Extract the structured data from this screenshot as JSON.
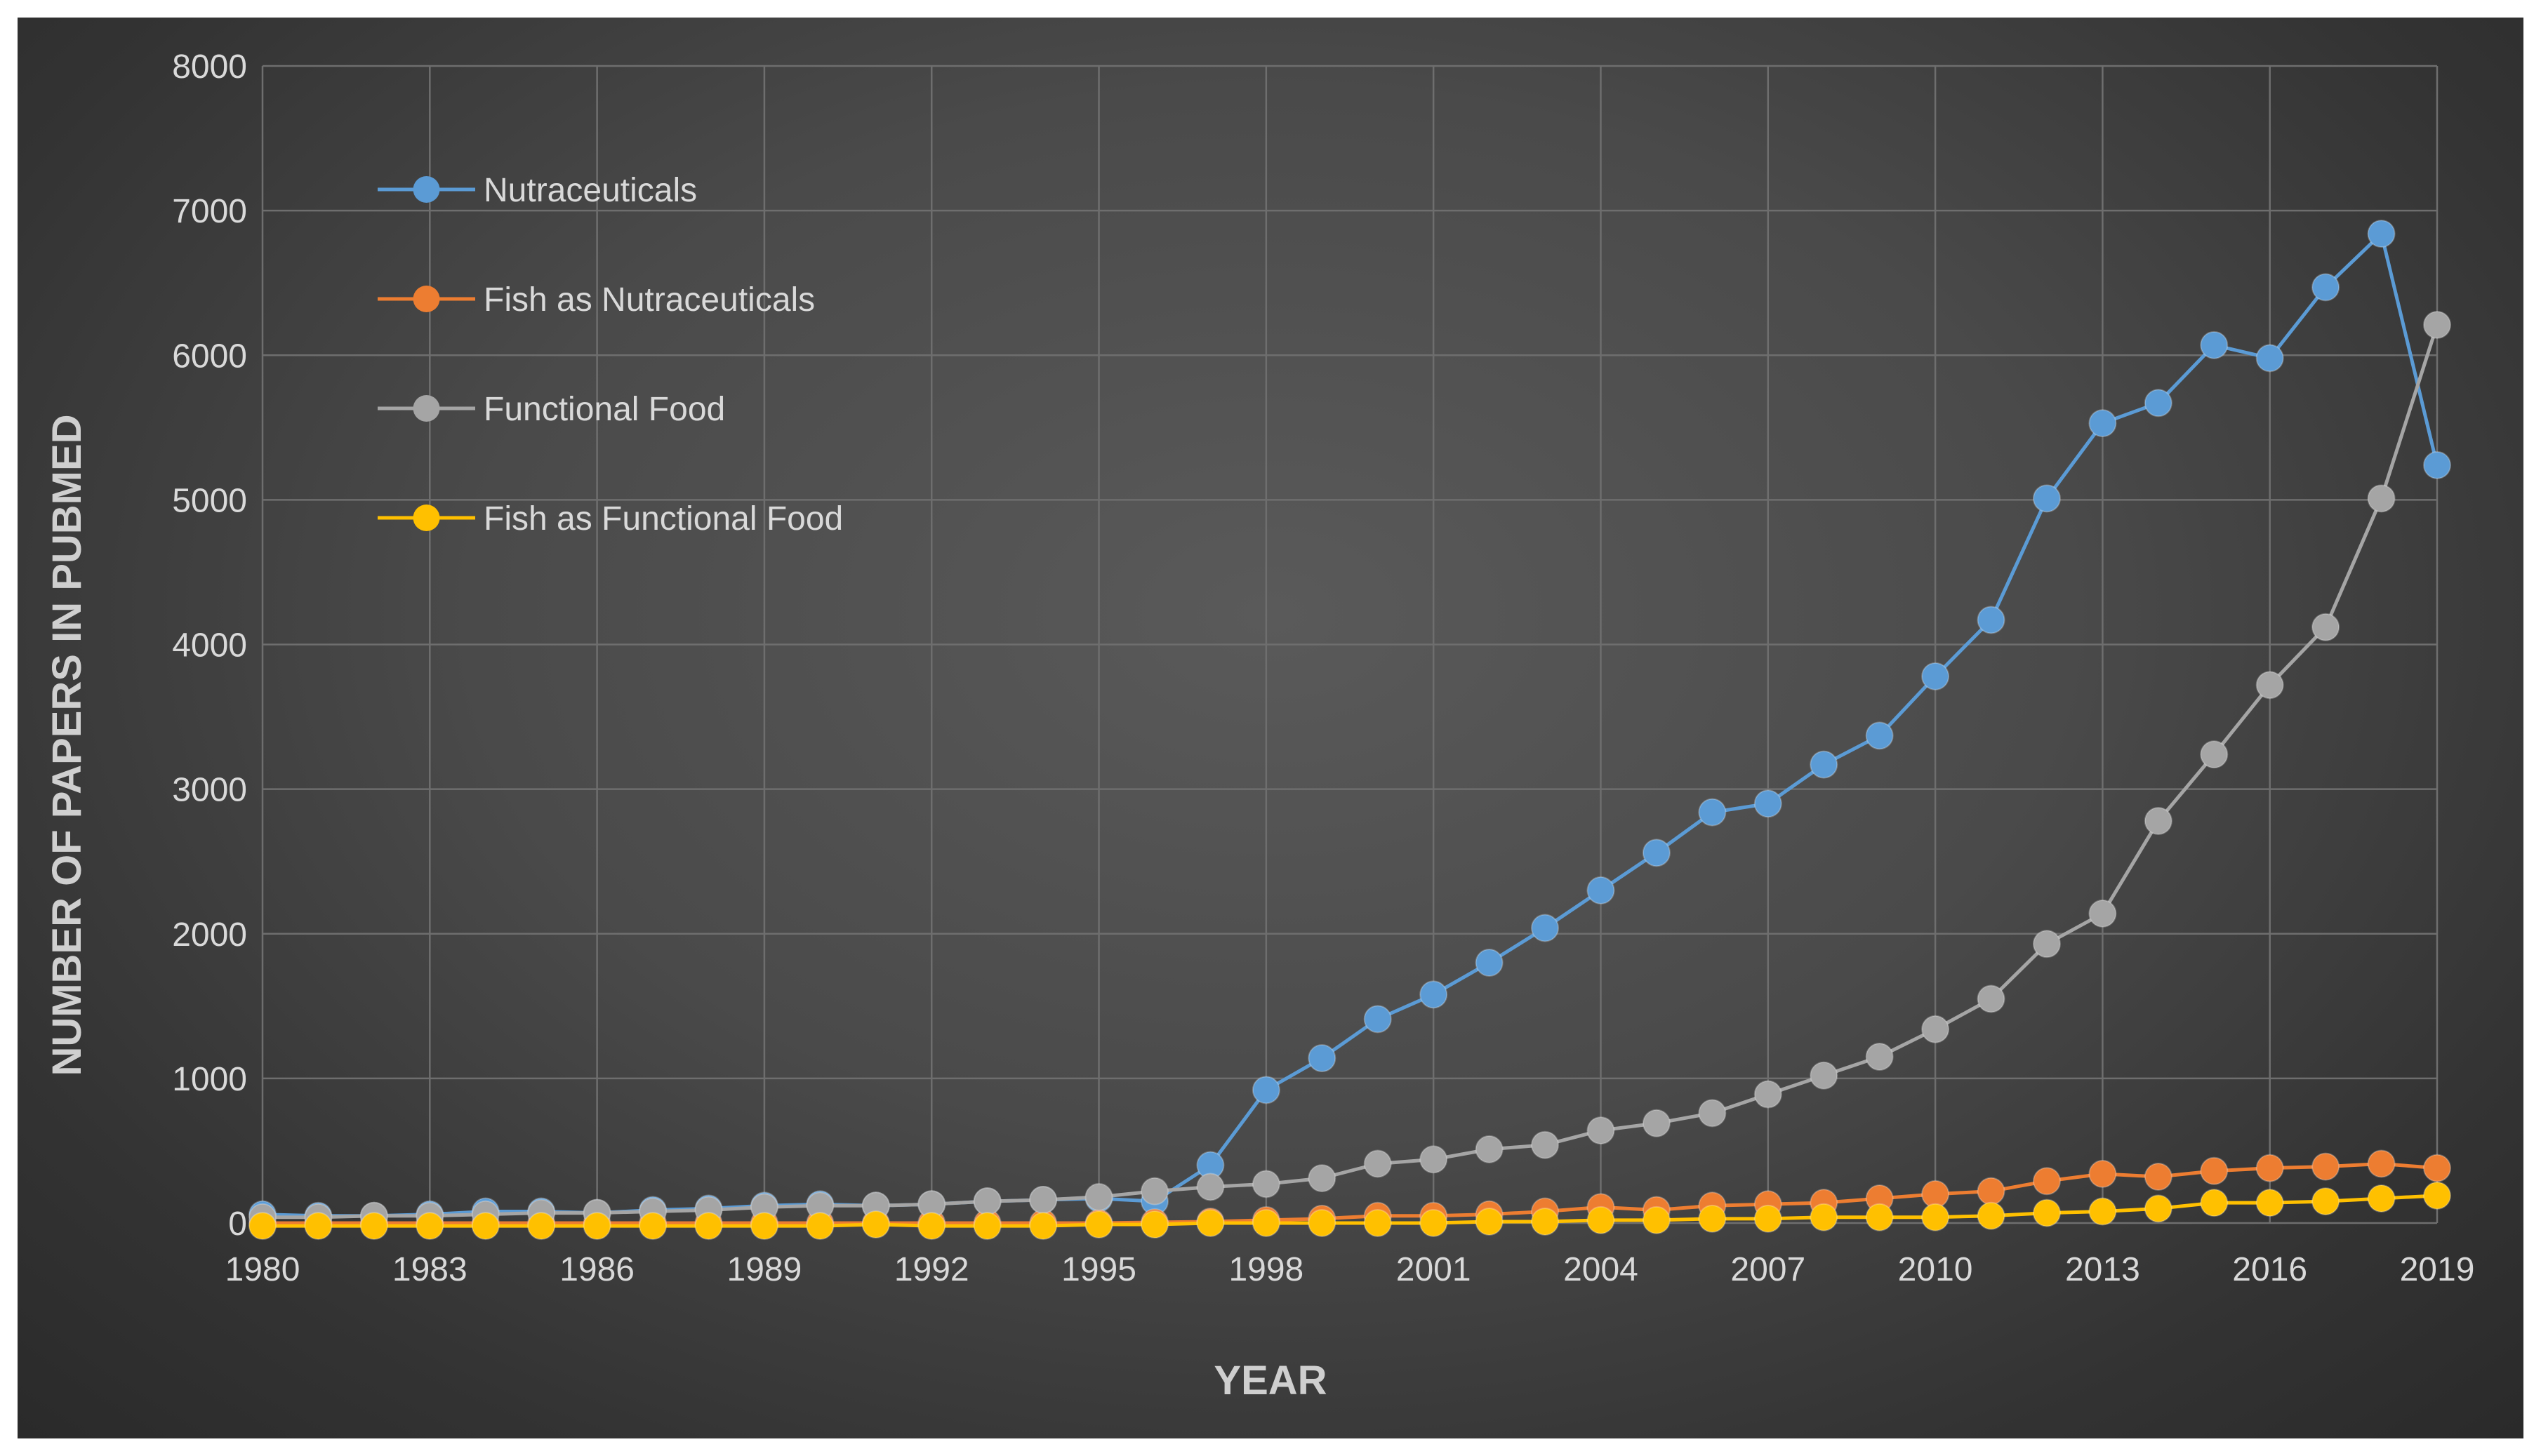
{
  "chart_data": {
    "type": "line",
    "title": "",
    "xlabel": "YEAR",
    "ylabel": "NUMBER OF PAPERS IN PUBMED",
    "x": [
      1980,
      1981,
      1982,
      1983,
      1984,
      1985,
      1986,
      1987,
      1988,
      1989,
      1990,
      1991,
      1992,
      1993,
      1994,
      1995,
      1996,
      1997,
      1998,
      1999,
      2000,
      2001,
      2002,
      2003,
      2004,
      2005,
      2006,
      2007,
      2008,
      2009,
      2010,
      2011,
      2012,
      2013,
      2014,
      2015,
      2016,
      2017,
      2018,
      2019
    ],
    "xticks": [
      "1980",
      "1983",
      "1986",
      "1989",
      "1992",
      "1995",
      "1998",
      "2001",
      "2004",
      "2007",
      "2010",
      "2013",
      "2016",
      "2019"
    ],
    "ylim": [
      0,
      8000
    ],
    "yticks": [
      "0",
      "1000",
      "2000",
      "3000",
      "4000",
      "5000",
      "6000",
      "7000",
      "8000"
    ],
    "grid": true,
    "legend_position": "top-left",
    "series": [
      {
        "name": "Nutraceuticals",
        "color": "#5b9bd5",
        "values": [
          60,
          50,
          50,
          60,
          80,
          80,
          70,
          90,
          100,
          120,
          130,
          120,
          130,
          150,
          160,
          170,
          150,
          400,
          920,
          1140,
          1410,
          1580,
          1800,
          2040,
          2300,
          2560,
          2840,
          2900,
          3170,
          3370,
          3780,
          4170,
          5010,
          5530,
          5670,
          6070,
          5980,
          6470,
          6840,
          5240
        ]
      },
      {
        "name": "Fish as Nutraceuticals",
        "color": "#ed7d31",
        "values": [
          0,
          0,
          0,
          0,
          0,
          0,
          0,
          0,
          0,
          0,
          0,
          0,
          0,
          0,
          0,
          0,
          5,
          10,
          20,
          30,
          50,
          50,
          60,
          80,
          110,
          90,
          120,
          130,
          140,
          170,
          200,
          220,
          290,
          340,
          320,
          360,
          380,
          390,
          410,
          380
        ]
      },
      {
        "name": "Functional Food",
        "color": "#a5a5a5",
        "values": [
          40,
          40,
          50,
          50,
          60,
          70,
          70,
          80,
          90,
          110,
          120,
          120,
          130,
          150,
          160,
          180,
          220,
          250,
          270,
          310,
          410,
          440,
          510,
          540,
          640,
          690,
          760,
          890,
          1020,
          1150,
          1340,
          1550,
          1930,
          2140,
          2780,
          3240,
          3720,
          4120,
          5010,
          6210
        ]
      },
      {
        "name": "Fish as Functional Food",
        "color": "#ffc000",
        "values": [
          -20,
          -20,
          -20,
          -20,
          -20,
          -20,
          -20,
          -20,
          -20,
          -20,
          -20,
          -10,
          -20,
          -20,
          -20,
          -10,
          -10,
          0,
          0,
          0,
          0,
          0,
          10,
          10,
          20,
          20,
          30,
          30,
          40,
          40,
          40,
          50,
          70,
          80,
          100,
          140,
          140,
          150,
          170,
          190
        ]
      }
    ]
  }
}
